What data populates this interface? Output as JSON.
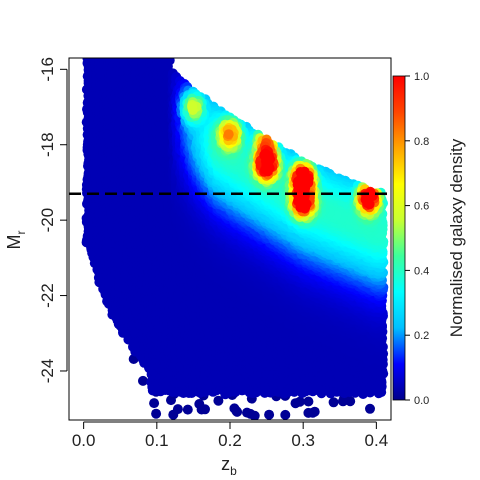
{
  "chart_data": {
    "type": "scatter",
    "xlabel_main": "z",
    "xlabel_sub": "b",
    "ylabel_main": "M",
    "ylabel_sub": "r",
    "xlim": [
      -0.02,
      0.42
    ],
    "ylim": [
      -15.7,
      -25.3
    ],
    "y_axis_inverted": true,
    "x_ticks": [
      0.0,
      0.1,
      0.2,
      0.3,
      0.4
    ],
    "x_tick_labels": [
      "0.0",
      "0.1",
      "0.2",
      "0.3",
      "0.4"
    ],
    "y_ticks": [
      -16,
      -18,
      -20,
      -22,
      -24
    ],
    "y_tick_labels": [
      "-16",
      "-18",
      "-20",
      "-22",
      "-24"
    ],
    "dashed_line": {
      "y": -19.3
    },
    "colorbar": {
      "label": "Normalised galaxy density",
      "range": [
        0.0,
        1.0
      ],
      "ticks": [
        0.0,
        0.2,
        0.4,
        0.6,
        0.8,
        1.0
      ],
      "tick_labels": [
        "0.0",
        "0.2",
        "0.4",
        "0.6",
        "0.8",
        "1.0"
      ],
      "colormap": [
        "#00008b",
        "#0000ff",
        "#00bfff",
        "#00ffff",
        "#3cff9c",
        "#c8ff32",
        "#ffff00",
        "#ffa500",
        "#ff4500",
        "#ff0000"
      ]
    },
    "density_peaks": [
      {
        "x": 0.25,
        "y": -18.5,
        "density": 0.95
      },
      {
        "x": 0.3,
        "y": -18.9,
        "density": 1.0
      },
      {
        "x": 0.3,
        "y": -19.5,
        "density": 0.85
      },
      {
        "x": 0.39,
        "y": -19.4,
        "density": 0.9
      },
      {
        "x": 0.25,
        "y": -17.9,
        "density": 0.55
      },
      {
        "x": 0.2,
        "y": -17.7,
        "density": 0.5
      },
      {
        "x": 0.15,
        "y": -17.0,
        "density": 0.4
      }
    ],
    "faint_limit_curve": [
      {
        "x": 0.12,
        "y": -16.1
      },
      {
        "x": 0.15,
        "y": -16.6
      },
      {
        "x": 0.2,
        "y": -17.3
      },
      {
        "x": 0.25,
        "y": -17.9
      },
      {
        "x": 0.3,
        "y": -18.5
      },
      {
        "x": 0.35,
        "y": -18.9
      },
      {
        "x": 0.4,
        "y": -19.3
      }
    ]
  }
}
